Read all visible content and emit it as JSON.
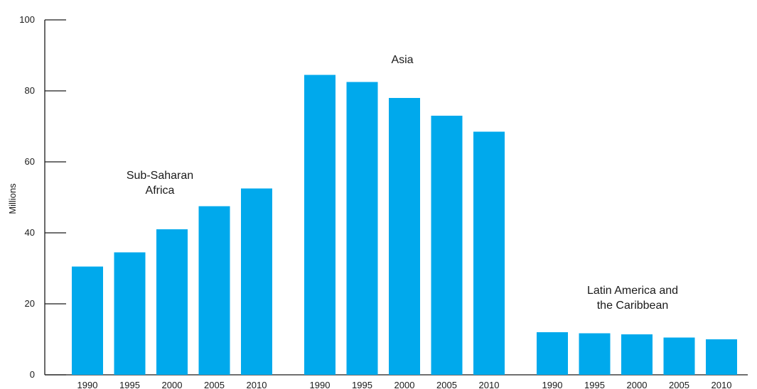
{
  "chart_data": {
    "type": "bar",
    "ylabel": "Millions",
    "ylim": [
      0,
      100
    ],
    "yticks": [
      "0",
      "20",
      "40",
      "60",
      "80",
      "100"
    ],
    "grid": false,
    "bar_color": "#00a9ec",
    "groups": [
      {
        "name": "Sub-Saharan Africa",
        "label_lines": [
          "Sub-Saharan",
          "Africa"
        ],
        "categories": [
          "1990",
          "1995",
          "2000",
          "2005",
          "2010"
        ],
        "values": [
          30.5,
          34.5,
          41,
          47.5,
          52.5
        ]
      },
      {
        "name": "Asia",
        "label_lines": [
          "Asia"
        ],
        "categories": [
          "1990",
          "1995",
          "2000",
          "2005",
          "2010"
        ],
        "values": [
          84.5,
          82.5,
          78,
          73,
          68.5
        ]
      },
      {
        "name": "Latin America and the Caribbean",
        "label_lines": [
          "Latin America and",
          "the Caribbean"
        ],
        "categories": [
          "1990",
          "1995",
          "2000",
          "2005",
          "2010"
        ],
        "values": [
          12,
          11.7,
          11.4,
          10.5,
          10
        ]
      }
    ]
  }
}
